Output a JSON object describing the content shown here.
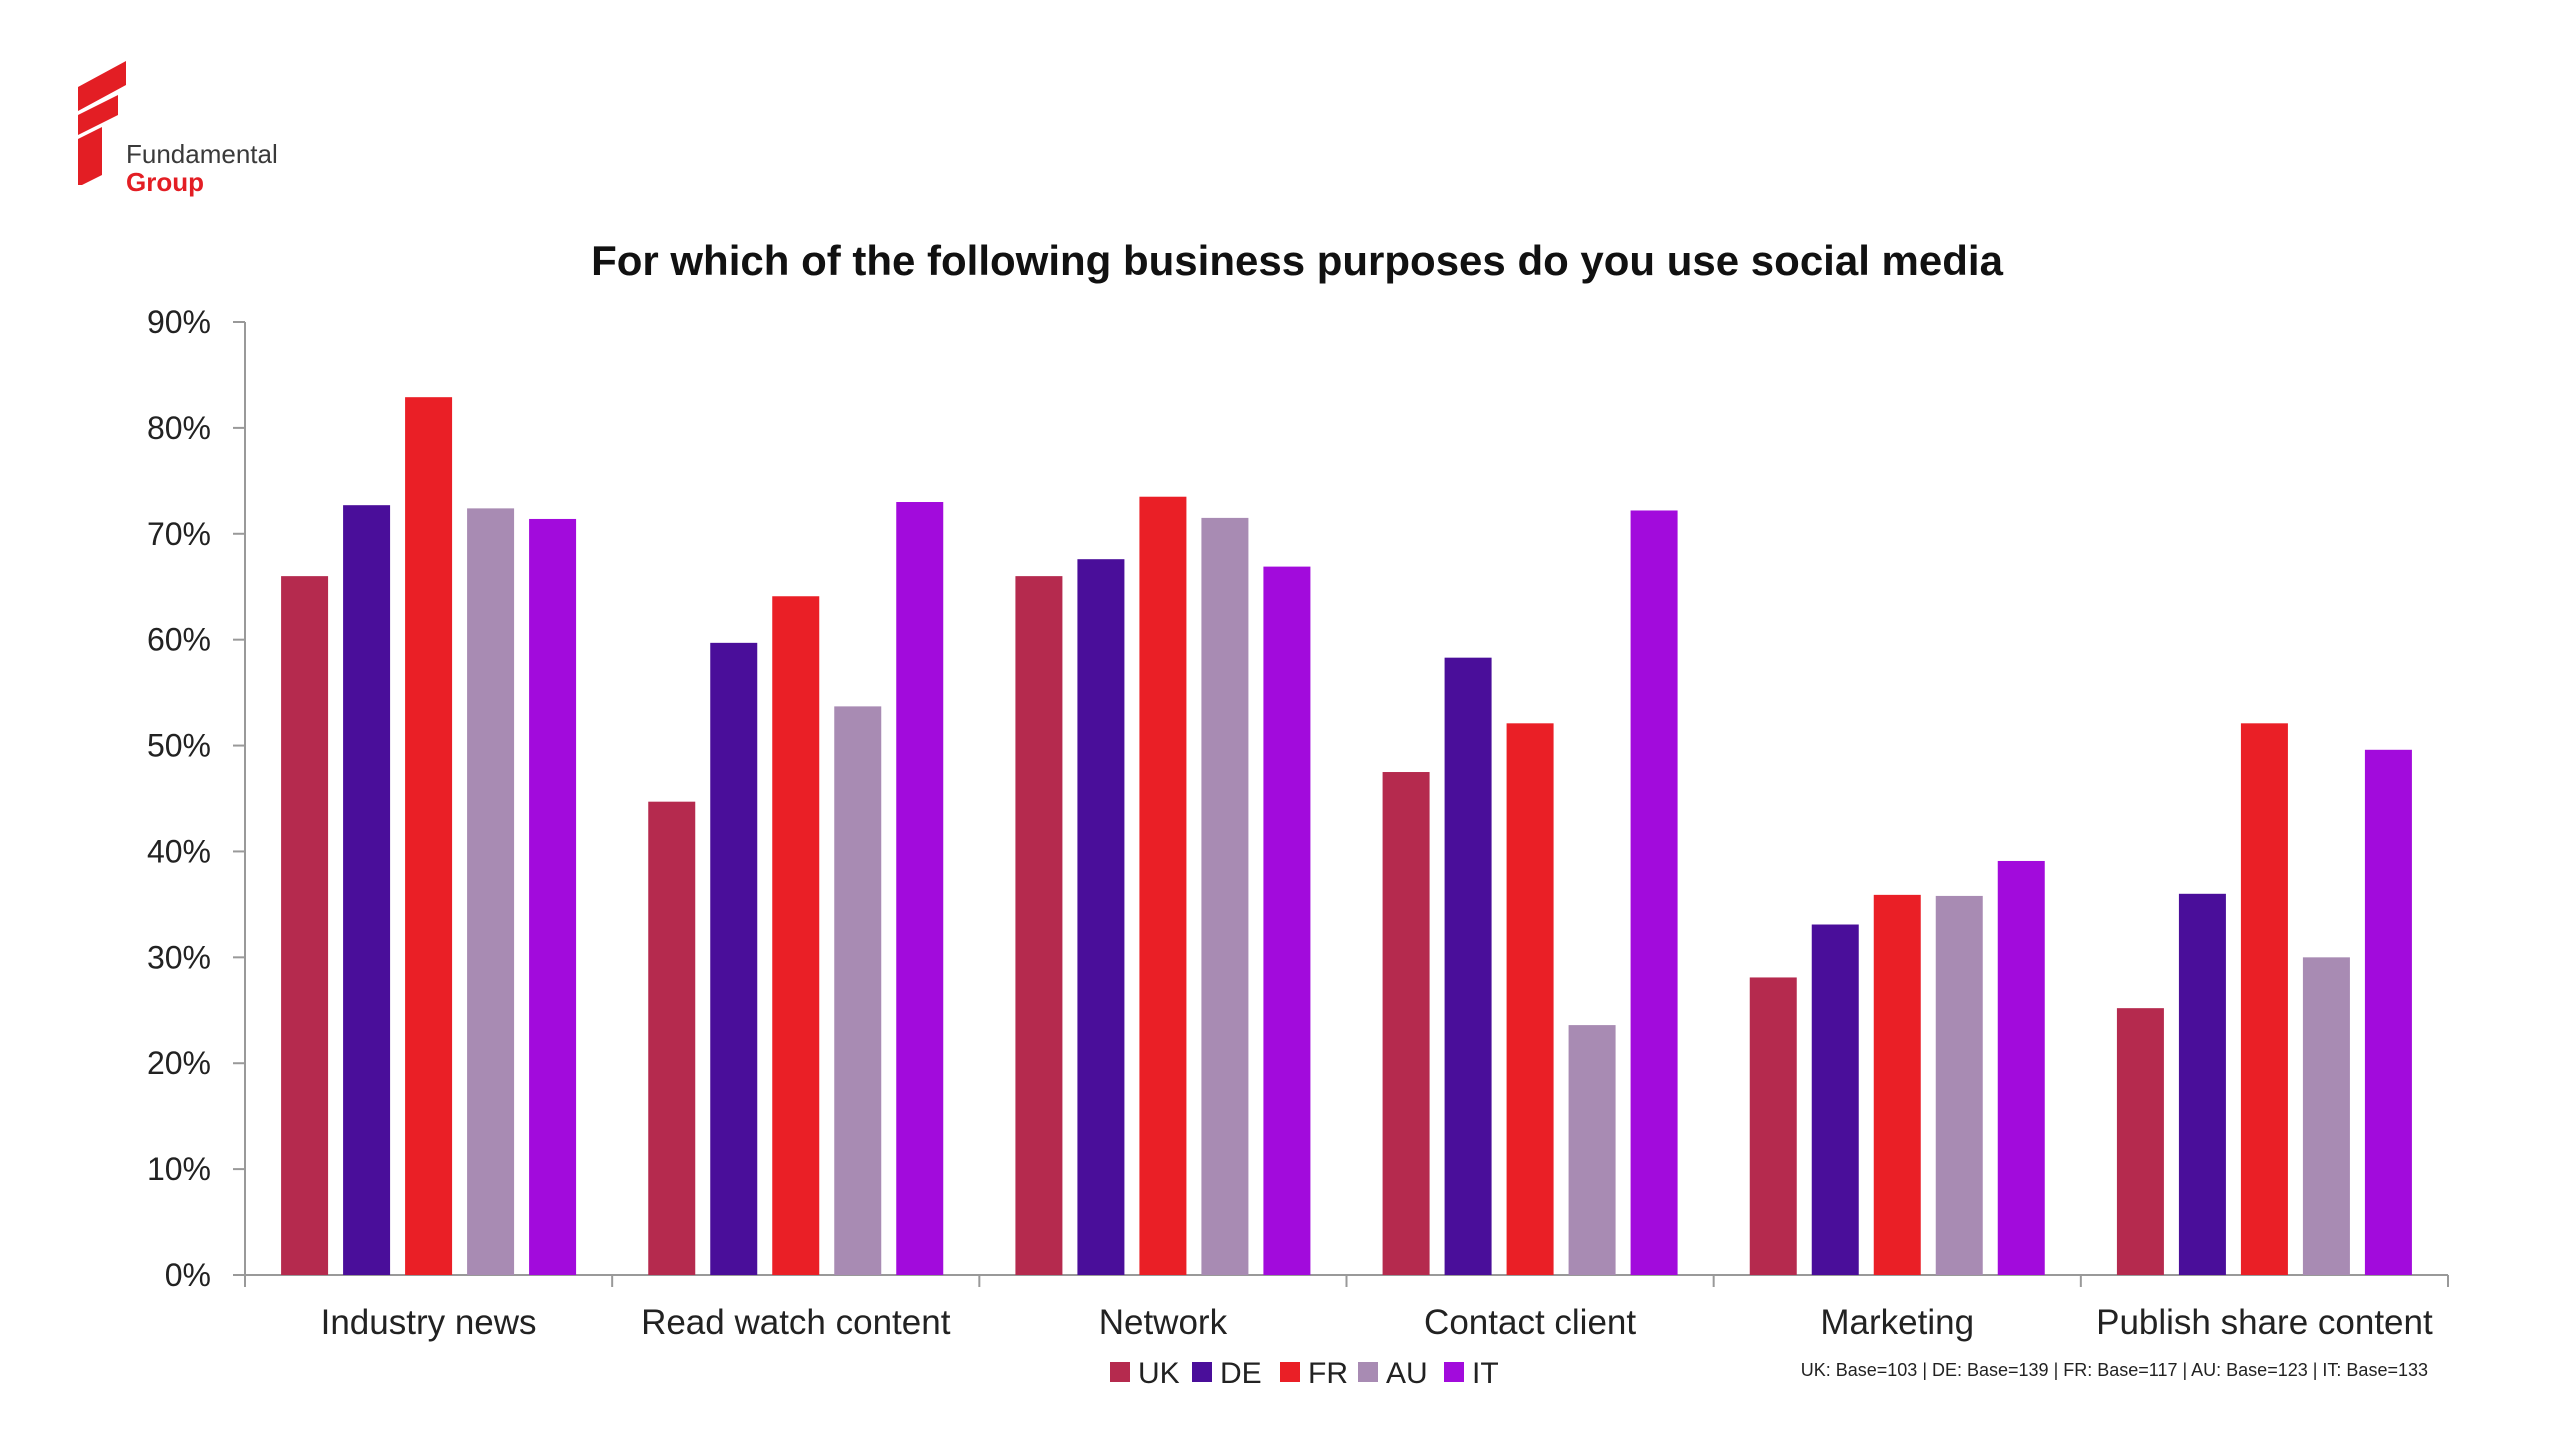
{
  "logo": {
    "line1": "Fundamental",
    "line2": "Group",
    "color": "#e31e24"
  },
  "colors": {
    "UK": "#b52a4e",
    "DE": "#4a0e9a",
    "FR": "#ea1f26",
    "AU": "#a88bb3",
    "IT": "#a20bdc"
  },
  "base_note": "UK: Base=103 | DE: Base=139 | FR: Base=117 | AU: Base=123 | IT: Base=133",
  "chart_data": {
    "type": "bar",
    "title": "For which of the following business purposes do you use social media",
    "xlabel": "",
    "ylabel": "",
    "ylim": [
      0,
      90
    ],
    "y_ticks": [
      "0%",
      "10%",
      "20%",
      "30%",
      "40%",
      "50%",
      "60%",
      "70%",
      "80%",
      "90%"
    ],
    "grid": false,
    "legend_position": "bottom",
    "categories": [
      "Industry news",
      "Read watch content",
      "Network",
      "Contact client",
      "Marketing",
      "Publish share content"
    ],
    "series": [
      {
        "name": "UK",
        "values": [
          66,
          44.7,
          66,
          47.5,
          28.1,
          25.2
        ]
      },
      {
        "name": "DE",
        "values": [
          72.7,
          59.7,
          67.6,
          58.3,
          33.1,
          36
        ]
      },
      {
        "name": "FR",
        "values": [
          82.9,
          64.1,
          73.5,
          52.1,
          35.9,
          52.1
        ]
      },
      {
        "name": "AU",
        "values": [
          72.4,
          53.7,
          71.5,
          23.6,
          35.8,
          30
        ]
      },
      {
        "name": "IT",
        "values": [
          71.4,
          73,
          66.9,
          72.2,
          39.1,
          49.6
        ]
      }
    ]
  }
}
